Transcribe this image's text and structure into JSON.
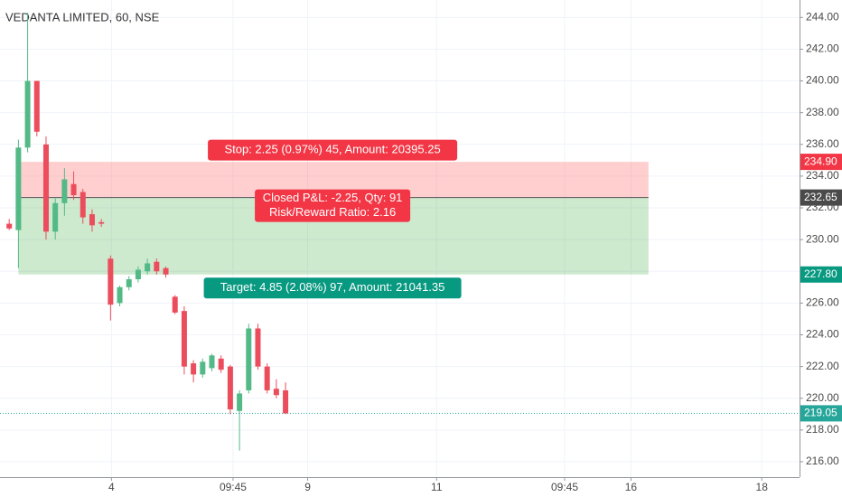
{
  "chart_data": {
    "type": "candlestick",
    "title": "VEDANTA LIMITED, 60, NSE",
    "up_color": "#53b987",
    "down_color": "#eb4d5c",
    "ohlc": {
      "open": [
        231.0,
        230.6,
        235.8,
        240.0,
        236.0,
        230.5,
        232.3,
        233.5,
        233.0,
        231.6,
        231.1,
        228.8,
        226.0,
        227.0,
        227.5,
        228.0,
        228.6,
        228.2,
        226.4,
        225.5,
        222.2,
        221.5,
        221.9,
        222.5,
        222.0,
        219.2,
        220.5,
        224.4,
        222.0,
        220.6,
        220.5
      ],
      "high": [
        231.3,
        236.3,
        244.3,
        240.0,
        236.5,
        232.6,
        234.5,
        234.3,
        233.2,
        231.9,
        231.3,
        229.0,
        227.1,
        227.7,
        228.3,
        228.8,
        228.8,
        228.3,
        226.5,
        225.8,
        222.4,
        222.5,
        222.8,
        222.7,
        222.1,
        220.5,
        224.7,
        224.7,
        222.2,
        221.2,
        221.0
      ],
      "low": [
        230.6,
        228.2,
        235.5,
        236.5,
        230.0,
        230.0,
        231.5,
        232.5,
        231.0,
        230.5,
        230.8,
        224.9,
        225.8,
        226.8,
        227.3,
        227.8,
        227.8,
        227.6,
        225.3,
        221.5,
        221.0,
        221.3,
        221.7,
        221.6,
        219.0,
        216.7,
        220.3,
        221.8,
        220.3,
        220.0,
        219.0
      ],
      "close": [
        230.7,
        235.8,
        240.0,
        236.8,
        230.5,
        232.3,
        233.8,
        232.8,
        231.4,
        230.9,
        231.0,
        225.9,
        227.0,
        227.5,
        228.1,
        228.5,
        228.0,
        227.8,
        225.4,
        222.0,
        221.5,
        222.3,
        222.7,
        221.8,
        219.3,
        220.3,
        224.4,
        222.0,
        220.5,
        220.2,
        219.05
      ]
    },
    "xlim": [
      -1,
      85.8
    ],
    "xticks": [
      {
        "value": 11.1,
        "label": "4"
      },
      {
        "value": 24.3,
        "label": "09:45"
      },
      {
        "value": 32.4,
        "label": "9"
      },
      {
        "value": 46.4,
        "label": "11"
      },
      {
        "value": 60.3,
        "label": "09:45"
      },
      {
        "value": 67.5,
        "label": "16"
      },
      {
        "value": 81.7,
        "label": "18"
      }
    ],
    "ylim": [
      215.03,
      245.1
    ],
    "yticks": [
      {
        "value": 216,
        "label": "216.00"
      },
      {
        "value": 218,
        "label": "218.00"
      },
      {
        "value": 220,
        "label": "220.00"
      },
      {
        "value": 222,
        "label": "222.00"
      },
      {
        "value": 224,
        "label": "224.00"
      },
      {
        "value": 226,
        "label": "226.00"
      },
      {
        "value": 228,
        "label": "228.00"
      },
      {
        "value": 230,
        "label": "230.00"
      },
      {
        "value": 232,
        "label": "232.00"
      },
      {
        "value": 234,
        "label": "234.00"
      },
      {
        "value": 236,
        "label": "236.00"
      },
      {
        "value": 238,
        "label": "238.00"
      },
      {
        "value": 240,
        "label": "240.00"
      },
      {
        "value": 242,
        "label": "242.00"
      },
      {
        "value": 244,
        "label": "244.00"
      }
    ],
    "grid": true,
    "position": {
      "x_start": 1,
      "x_end": 69.4,
      "stop": {
        "value": 234.9,
        "label": "234.90"
      },
      "entry": 232.65,
      "target": {
        "value": 227.8,
        "label": "227.80"
      },
      "stop_label": "Stop: 2.25 (0.97%) 45, Amount: 20395.25",
      "pnl_label": [
        "Closed P&L: -2.25, Qty: 91",
        "Risk/Reward Ratio: 2.16"
      ],
      "target_label": "Target: 4.85 (2.08%) 97, Amount: 21041.35"
    },
    "last_price": 219.05
  }
}
